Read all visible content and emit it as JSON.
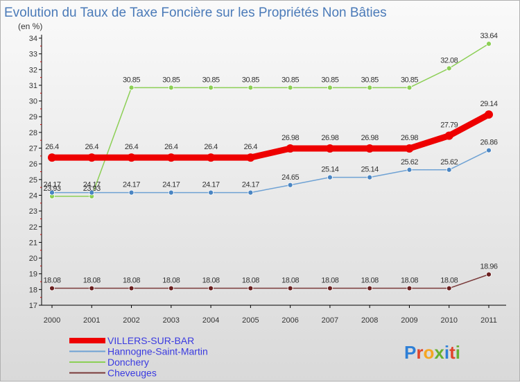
{
  "colors": {
    "title": "#4a7ab8",
    "axis": "#000000",
    "tick_minor": "#cc0000",
    "label": "#333333",
    "legend_text": "#3a3ae0",
    "watermark_letters": [
      "#2e7fd6",
      "#e0452b",
      "#f5a623",
      "#66b032",
      "#2e7fd6",
      "#e0452b",
      "#66b032"
    ]
  },
  "chart_data": {
    "type": "line",
    "title": "Evolution du Taux de Taxe Foncière sur les Propriétés Non Bâties",
    "ylabel": "(en %)",
    "xlabel": "",
    "x": [
      "2000",
      "2001",
      "2002",
      "2003",
      "2004",
      "2005",
      "2006",
      "2007",
      "2008",
      "2009",
      "2010",
      "2011"
    ],
    "ylim": [
      17,
      34
    ],
    "yticks": [
      "17",
      "18",
      "19",
      "20",
      "21",
      "22",
      "23",
      "24",
      "25",
      "26",
      "27",
      "28",
      "29",
      "30",
      "31",
      "32",
      "33",
      "34"
    ],
    "series": [
      {
        "name": "Donchery",
        "color": "#8ccf55",
        "marker": "#8ccf55",
        "thick": false,
        "values": [
          23.93,
          23.93,
          30.85,
          30.85,
          30.85,
          30.85,
          30.85,
          30.85,
          30.85,
          30.85,
          32.08,
          33.64
        ],
        "labels": [
          "23.93",
          "23.93",
          "30.85",
          "30.85",
          "30.85",
          "30.85",
          "30.85",
          "30.85",
          "30.85",
          "30.85",
          "32.08",
          "33.64"
        ]
      },
      {
        "name": "VILLERS-SUR-BAR",
        "color": "#ee0000",
        "marker": "#ee0000",
        "thick": true,
        "values": [
          26.4,
          26.4,
          26.4,
          26.4,
          26.4,
          26.4,
          26.98,
          26.98,
          26.98,
          26.98,
          27.79,
          29.14
        ],
        "labels": [
          "26.4",
          "26.4",
          "26.4",
          "26.4",
          "26.4",
          "26.4",
          "26.98",
          "26.98",
          "26.98",
          "26.98",
          "27.79",
          "29.14"
        ]
      },
      {
        "name": "Hannogne-Saint-Martin",
        "color": "#6fa2d4",
        "marker": "#4a85c2",
        "thick": false,
        "values": [
          24.17,
          24.17,
          24.17,
          24.17,
          24.17,
          24.17,
          24.65,
          25.14,
          25.14,
          25.62,
          25.62,
          26.86
        ],
        "labels": [
          "24.17",
          "24.17",
          "24.17",
          "24.17",
          "24.17",
          "24.17",
          "24.65",
          "25.14",
          "25.14",
          "25.62",
          "25.62",
          "26.86"
        ]
      },
      {
        "name": "Cheveuges",
        "color": "#7a3a3a",
        "marker": "#6a2020",
        "thick": false,
        "values": [
          18.08,
          18.08,
          18.08,
          18.08,
          18.08,
          18.08,
          18.08,
          18.08,
          18.08,
          18.08,
          18.08,
          18.96
        ],
        "labels": [
          "18.08",
          "18.08",
          "18.08",
          "18.08",
          "18.08",
          "18.08",
          "18.08",
          "18.08",
          "18.08",
          "18.08",
          "18.08",
          "18.96"
        ]
      }
    ],
    "legend": [
      "VILLERS-SUR-BAR",
      "Hannogne-Saint-Martin",
      "Donchery",
      "Cheveuges"
    ],
    "legend_position": "bottom-left",
    "grid": false
  },
  "watermark": {
    "text": "Proxiti"
  }
}
